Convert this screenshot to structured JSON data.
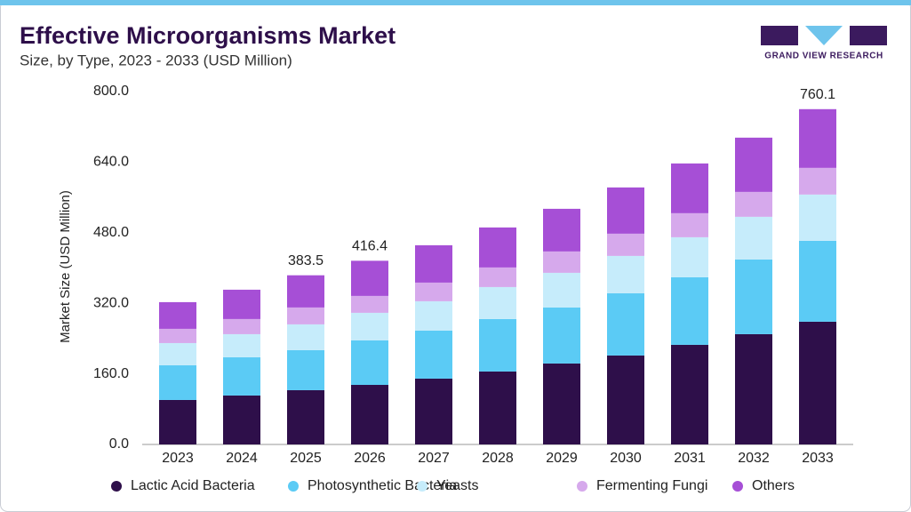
{
  "chart_data": {
    "type": "stacked-bar",
    "title": "Effective Microorganisms Market",
    "subtitle": "Size, by Type, 2023 - 2033 (USD Million)",
    "brand": "GRAND VIEW RESEARCH",
    "y_label": "Market Size (USD Million)",
    "categories": [
      "2023",
      "2024",
      "2025",
      "2026",
      "2027",
      "2028",
      "2029",
      "2030",
      "2031",
      "2032",
      "2033"
    ],
    "series": [
      {
        "name": "Lactic Acid Bacteria",
        "color": "#2e0f4a",
        "values": [
          100.8,
          110.9,
          123.0,
          135.0,
          149.2,
          165.3,
          183.5,
          201.6,
          225.8,
          250.0,
          278.2
        ]
      },
      {
        "name": "Photosynthetic Bacteria",
        "color": "#5bcbf5",
        "values": [
          78.6,
          86.7,
          90.7,
          100.9,
          108.8,
          119.0,
          127.0,
          141.1,
          153.2,
          169.3,
          183.5
        ]
      },
      {
        "name": "Yeasts",
        "color": "#c6ecfb",
        "values": [
          50.4,
          52.4,
          58.5,
          62.5,
          66.6,
          72.5,
          78.6,
          84.7,
          90.7,
          96.8,
          104.8
        ]
      },
      {
        "name": "Fermenting Fungi",
        "color": "#d6a9ec",
        "values": [
          32.3,
          34.3,
          38.3,
          38.3,
          42.3,
          44.4,
          48.4,
          50.4,
          54.5,
          56.4,
          60.5
        ]
      },
      {
        "name": "Others",
        "color": "#a64fd6",
        "values": [
          60.5,
          66.5,
          73.0,
          79.7,
          84.7,
          90.7,
          96.7,
          104.8,
          112.8,
          123.0,
          133.1
        ]
      }
    ],
    "totals": [
      null,
      null,
      383.5,
      416.4,
      null,
      null,
      null,
      null,
      null,
      null,
      760.1
    ],
    "ylim": [
      0,
      800
    ],
    "yticks": [
      {
        "value": 0,
        "label": "0.0"
      },
      {
        "value": 160,
        "label": "160.0"
      },
      {
        "value": 320,
        "label": "320.0"
      },
      {
        "value": 480,
        "label": "480.0"
      },
      {
        "value": 640,
        "label": "640.0"
      },
      {
        "value": 800,
        "label": "800.0"
      }
    ],
    "grid": false
  }
}
